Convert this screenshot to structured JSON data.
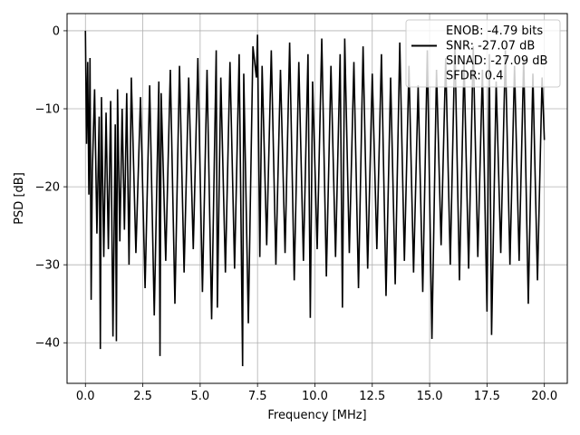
{
  "chart_data": {
    "type": "line",
    "title": "",
    "xlabel": "Frequency [MHz]",
    "ylabel": "PSD [dB]",
    "xlim": [
      -0.8,
      21.0
    ],
    "ylim": [
      -45.2,
      2.2
    ],
    "xticks": [
      0.0,
      2.5,
      5.0,
      7.5,
      10.0,
      12.5,
      15.0,
      17.5,
      20.0
    ],
    "xtick_labels": [
      "0.0",
      "2.5",
      "5.0",
      "7.5",
      "10.0",
      "12.5",
      "15.0",
      "17.5",
      "20.0"
    ],
    "yticks": [
      0,
      -10,
      -20,
      -30,
      -40
    ],
    "ytick_labels": [
      "0",
      "−10",
      "−20",
      "−30",
      "−40"
    ],
    "grid": true,
    "legend_position": "top-right",
    "legend": [
      {
        "label": "ENOB: -4.79 bits",
        "marker": "none"
      },
      {
        "label": "SNR: -27.07 dB",
        "marker": "line"
      },
      {
        "label": "SINAD: -27.09 dB",
        "marker": "none"
      },
      {
        "label": "SFDR: 0.4",
        "marker": "none"
      }
    ],
    "series": [
      {
        "color": "#000000",
        "x": [
          0.0,
          0.05,
          0.1,
          0.15,
          0.2,
          0.25,
          0.3,
          0.4,
          0.5,
          0.6,
          0.65,
          0.7,
          0.8,
          0.9,
          1.0,
          1.1,
          1.2,
          1.3,
          1.35,
          1.4,
          1.5,
          1.6,
          1.7,
          1.8,
          1.9,
          2.0,
          2.2,
          2.4,
          2.6,
          2.8,
          3.0,
          3.2,
          3.25,
          3.3,
          3.5,
          3.7,
          3.9,
          4.1,
          4.3,
          4.5,
          4.7,
          4.9,
          5.1,
          5.3,
          5.5,
          5.7,
          5.75,
          5.9,
          6.1,
          6.3,
          6.5,
          6.7,
          6.85,
          6.9,
          7.1,
          7.3,
          7.45,
          7.5,
          7.6,
          7.7,
          7.9,
          8.1,
          8.3,
          8.5,
          8.7,
          8.9,
          9.1,
          9.3,
          9.5,
          9.7,
          9.8,
          9.9,
          10.1,
          10.3,
          10.5,
          10.7,
          10.9,
          11.1,
          11.2,
          11.3,
          11.5,
          11.7,
          11.9,
          12.1,
          12.3,
          12.5,
          12.7,
          12.9,
          13.1,
          13.3,
          13.5,
          13.7,
          13.9,
          14.1,
          14.3,
          14.5,
          14.7,
          14.9,
          15.1,
          15.3,
          15.5,
          15.7,
          15.9,
          16.1,
          16.3,
          16.5,
          16.7,
          16.9,
          17.1,
          17.3,
          17.5,
          17.6,
          17.7,
          17.9,
          18.1,
          18.3,
          18.5,
          18.7,
          18.9,
          19.1,
          19.3,
          19.5,
          19.7,
          19.9,
          20.0
        ],
        "y": [
          0.0,
          -14.5,
          -4.0,
          -21.0,
          -3.5,
          -34.5,
          -18.0,
          -7.5,
          -26.0,
          -11.0,
          -40.8,
          -8.5,
          -29.0,
          -10.5,
          -28.0,
          -9.0,
          -39.2,
          -12.0,
          -39.8,
          -7.5,
          -27.0,
          -10.0,
          -25.5,
          -8.0,
          -30.0,
          -6.0,
          -28.5,
          -8.5,
          -33.0,
          -7.0,
          -36.5,
          -6.5,
          -41.7,
          -8.0,
          -29.5,
          -5.0,
          -35.0,
          -4.5,
          -31.0,
          -6.0,
          -28.0,
          -3.5,
          -33.5,
          -5.0,
          -37.0,
          -2.5,
          -35.5,
          -6.0,
          -31.0,
          -4.0,
          -30.5,
          -3.0,
          -43.0,
          -5.5,
          -37.5,
          -2.0,
          -6.0,
          -0.5,
          -29.0,
          -4.5,
          -27.5,
          -2.5,
          -30.0,
          -5.0,
          -28.5,
          -1.5,
          -32.0,
          -4.0,
          -29.5,
          -3.0,
          -36.8,
          -6.5,
          -28.0,
          -1.0,
          -31.5,
          -4.5,
          -29.0,
          -3.0,
          -35.5,
          -1.0,
          -28.5,
          -4.0,
          -33.0,
          -2.0,
          -30.5,
          -5.5,
          -28.0,
          -3.0,
          -34.0,
          -6.0,
          -32.5,
          -1.5,
          -29.5,
          -4.5,
          -31.0,
          -7.0,
          -33.5,
          -2.5,
          -39.5,
          -5.0,
          -27.5,
          -3.5,
          -30.0,
          -1.5,
          -32.0,
          -4.0,
          -30.5,
          -2.0,
          -29.0,
          -5.0,
          -36.0,
          -3.0,
          -39.0,
          -6.5,
          -28.5,
          -2.5,
          -30.0,
          -4.5,
          -29.5,
          -3.5,
          -35.0,
          -5.5,
          -32.0,
          -6.0,
          -14.0
        ]
      }
    ]
  }
}
